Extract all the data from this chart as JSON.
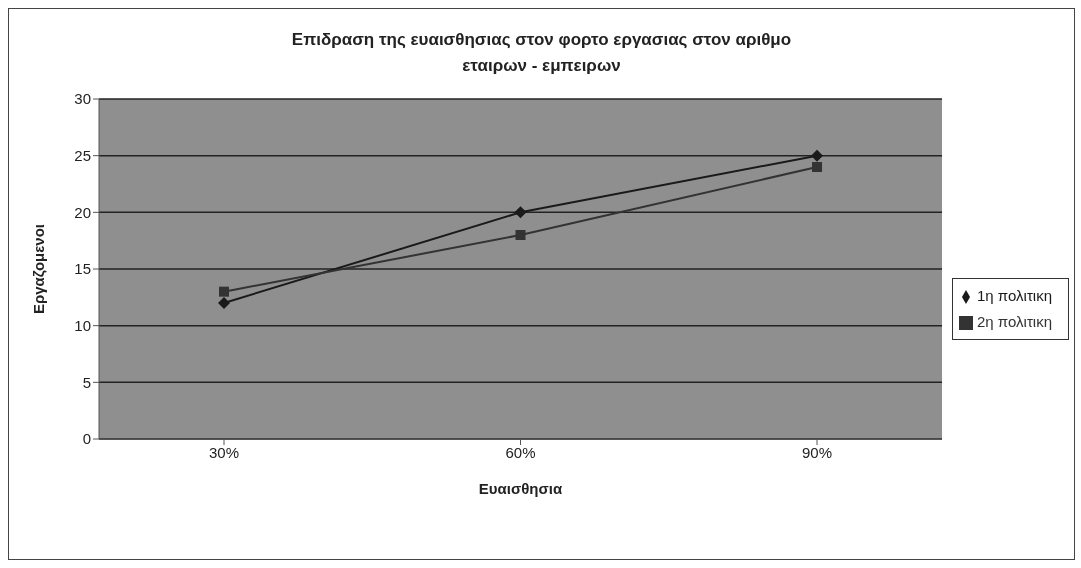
{
  "chart_data": {
    "type": "line",
    "title": "Επιδραση της ευαισθησιας στον φορτο εργασιας στον αριθμο εταιρων - εμπειρων",
    "xlabel": "Ευαισθησια",
    "ylabel": "Εργαζομενοι",
    "categories": [
      "30%",
      "60%",
      "90%"
    ],
    "series": [
      {
        "name": "1η πολιτικη",
        "color": "#1a1a1a",
        "marker": "diamond",
        "values": [
          12,
          20,
          25
        ]
      },
      {
        "name": "2η πολιτικη",
        "color": "#333333",
        "marker": "square",
        "values": [
          13,
          18,
          24
        ]
      }
    ],
    "ylim": [
      0,
      30
    ],
    "yticks": [
      0,
      5,
      10,
      15,
      20,
      25,
      30
    ],
    "grid": "y",
    "legend": "right"
  }
}
